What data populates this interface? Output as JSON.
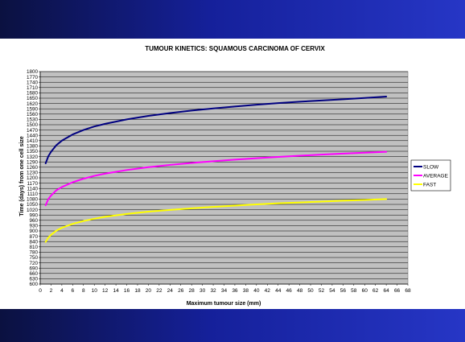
{
  "chart_data": {
    "type": "line",
    "title": "TUMOUR KINETICS: SQUAMOUS CARCINOMA OF CERVIX",
    "xlabel": "Maximum tumour size (mm)",
    "ylabel": "Time (days) from one cell size",
    "xlim": [
      0,
      68
    ],
    "ylim": [
      600,
      1800
    ],
    "x_ticks": [
      0,
      2,
      4,
      6,
      8,
      10,
      12,
      14,
      16,
      18,
      20,
      22,
      24,
      26,
      28,
      30,
      32,
      34,
      36,
      38,
      40,
      42,
      44,
      46,
      48,
      50,
      52,
      54,
      56,
      58,
      60,
      62,
      64,
      66,
      68
    ],
    "y_ticks": [
      600,
      630,
      660,
      690,
      720,
      750,
      780,
      810,
      840,
      870,
      900,
      930,
      960,
      990,
      1020,
      1050,
      1080,
      1110,
      1140,
      1170,
      1200,
      1230,
      1260,
      1290,
      1320,
      1350,
      1380,
      1410,
      1440,
      1470,
      1500,
      1530,
      1560,
      1590,
      1620,
      1650,
      1680,
      1710,
      1740,
      1770,
      1800
    ],
    "grid": true,
    "plot_background": "#c0c0c0",
    "legend_position": "right",
    "x": [
      1,
      1.5,
      2,
      3,
      4,
      6,
      8,
      10,
      12,
      16,
      20,
      24,
      28,
      32,
      36,
      40,
      44,
      48,
      52,
      56,
      60,
      64
    ],
    "series": [
      {
        "name": "SLOW",
        "color": "#000080",
        "values": [
          1282,
          1322,
          1347,
          1385,
          1410,
          1445,
          1470,
          1490,
          1505,
          1530,
          1550,
          1566,
          1580,
          1592,
          1603,
          1613,
          1622,
          1630,
          1637,
          1644,
          1651,
          1659
        ]
      },
      {
        "name": "AVERAGE",
        "color": "#ff00ff",
        "values": [
          1045,
          1080,
          1100,
          1130,
          1148,
          1175,
          1195,
          1211,
          1224,
          1244,
          1260,
          1273,
          1284,
          1294,
          1303,
          1311,
          1318,
          1325,
          1331,
          1337,
          1342,
          1347
        ]
      },
      {
        "name": "FAST",
        "color": "#ffff00",
        "values": [
          838,
          862,
          878,
          902,
          918,
          940,
          956,
          969,
          980,
          996,
          1009,
          1019,
          1028,
          1036,
          1043,
          1050,
          1056,
          1061,
          1066,
          1071,
          1075,
          1080
        ]
      }
    ]
  }
}
